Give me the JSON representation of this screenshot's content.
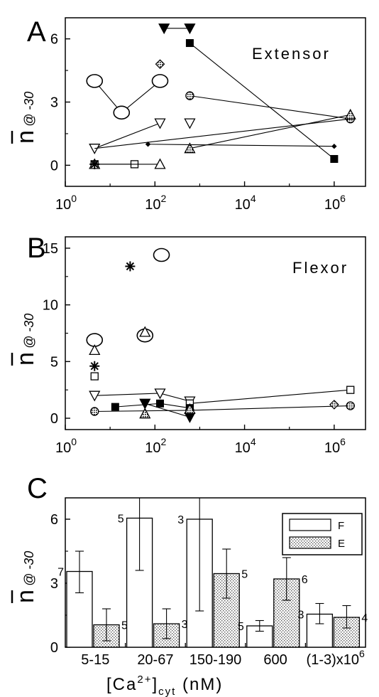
{
  "chart_data": [
    {
      "panel": "A",
      "type": "scatter",
      "annotation": "Extensor",
      "ylabel_main": "n",
      "ylabel_sub": "@ -30",
      "xscale": "log",
      "xlim": [
        1,
        5000000
      ],
      "ylim": [
        -1,
        7
      ],
      "xticks": [
        1,
        100,
        10000,
        1000000
      ],
      "xtick_labels": [
        {
          "base": "10",
          "exp": "0"
        },
        {
          "base": "10",
          "exp": "2"
        },
        {
          "base": "10",
          "exp": "4"
        },
        {
          "base": "10",
          "exp": "6"
        }
      ],
      "yticks": [
        0,
        3,
        6
      ],
      "ytick_labels": [
        "0",
        "3",
        "6"
      ],
      "series": [
        {
          "marker": "circle-large",
          "connected": true,
          "points": [
            [
              4.5,
              4.0
            ],
            [
              18,
              2.5
            ],
            [
              130,
              4.0
            ]
          ]
        },
        {
          "marker": "circle-hatched",
          "connected": true,
          "points": [
            [
              600,
              3.3
            ],
            [
              2300000,
              2.2
            ]
          ]
        },
        {
          "marker": "triangle-down",
          "connected": true,
          "points": [
            [
              4.5,
              0.8
            ],
            [
              130,
              2.0
            ]
          ]
        },
        {
          "marker": "triangle-down",
          "connected": false,
          "points": [
            [
              600,
              2.0
            ]
          ]
        },
        {
          "marker": "triangle-down-filled",
          "connected": true,
          "points": [
            [
              160,
              6.5
            ],
            [
              600,
              6.5
            ]
          ]
        },
        {
          "marker": "square-filled",
          "connected": true,
          "points": [
            [
              600,
              5.8
            ],
            [
              1000000,
              0.3
            ]
          ]
        },
        {
          "marker": "diamond-hatched",
          "connected": false,
          "points": [
            [
              130,
              4.8
            ]
          ]
        },
        {
          "marker": "diamond-small",
          "connected": true,
          "points": [
            [
              70,
              1.0
            ],
            [
              1000000,
              0.9
            ]
          ]
        },
        {
          "marker": "triangle-up-hatched",
          "connected": true,
          "points": [
            [
              600,
              0.8
            ],
            [
              2300000,
              2.4
            ]
          ]
        },
        {
          "marker": "square-open",
          "connected": true,
          "points": [
            [
              4.5,
              0.05
            ],
            [
              35,
              0.05
            ]
          ]
        },
        {
          "marker": "triangle-up",
          "connected": true,
          "points": [
            [
              4.5,
              0.05
            ],
            [
              130,
              0.05
            ]
          ]
        },
        {
          "marker": "star",
          "connected": false,
          "points": [
            [
              4.5,
              0.05
            ]
          ]
        },
        {
          "marker": "none",
          "connected": true,
          "points": [
            [
              4.5,
              0.8
            ],
            [
              2300000,
              2.2
            ]
          ]
        }
      ]
    },
    {
      "panel": "B",
      "type": "scatter",
      "annotation": "Flexor",
      "ylabel_main": "n",
      "ylabel_sub": "@ -30",
      "xscale": "log",
      "xlim": [
        1,
        5000000
      ],
      "ylim": [
        -1,
        16
      ],
      "xticks": [
        1,
        100,
        10000,
        1000000
      ],
      "xtick_labels": [
        {
          "base": "10",
          "exp": "0"
        },
        {
          "base": "10",
          "exp": "2"
        },
        {
          "base": "10",
          "exp": "4"
        },
        {
          "base": "10",
          "exp": "6"
        }
      ],
      "yticks": [
        0,
        5,
        10,
        15
      ],
      "ytick_labels": [
        "0",
        "5",
        "10",
        "15"
      ],
      "series": [
        {
          "marker": "circle-large",
          "connected": false,
          "points": [
            [
              4.5,
              6.9
            ],
            [
              60,
              7.3
            ],
            [
              140,
              14.4
            ]
          ]
        },
        {
          "marker": "star",
          "connected": false,
          "points": [
            [
              4.5,
              4.6
            ],
            [
              28,
              13.4
            ]
          ]
        },
        {
          "marker": "triangle-up",
          "connected": false,
          "points": [
            [
              4.5,
              6.0
            ],
            [
              60,
              7.6
            ]
          ]
        },
        {
          "marker": "square-open",
          "connected": false,
          "points": [
            [
              4.5,
              3.7
            ]
          ]
        },
        {
          "marker": "triangle-down",
          "connected": true,
          "points": [
            [
              4.5,
              2.0
            ],
            [
              130,
              2.2
            ],
            [
              600,
              1.5
            ]
          ]
        },
        {
          "marker": "square-open",
          "connected": true,
          "points": [
            [
              600,
              1.3
            ],
            [
              2300000,
              2.5
            ]
          ]
        },
        {
          "marker": "circle-hatched",
          "connected": true,
          "points": [
            [
              4.5,
              0.6
            ],
            [
              600,
              0.7
            ],
            [
              2300000,
              1.1
            ]
          ]
        },
        {
          "marker": "square-filled",
          "connected": true,
          "points": [
            [
              13,
              1.0
            ],
            [
              130,
              1.3
            ],
            [
              600,
              0.9
            ]
          ]
        },
        {
          "marker": "triangle-down-filled",
          "connected": true,
          "points": [
            [
              60,
              1.3
            ],
            [
              600,
              0.1
            ]
          ]
        },
        {
          "marker": "triangle-up-hatched",
          "connected": false,
          "points": [
            [
              60,
              0.4
            ],
            [
              600,
              0.8
            ]
          ]
        },
        {
          "marker": "diamond-hatched",
          "connected": false,
          "points": [
            [
              1000000,
              1.2
            ]
          ]
        }
      ]
    },
    {
      "panel": "C",
      "type": "bar",
      "ylabel_main": "n",
      "ylabel_sub": "@ -30",
      "xlabel": {
        "main": "[Ca",
        "sup": "2+",
        "close": "]",
        "sub": "cyt",
        "units": " (nM)"
      },
      "categories": [
        {
          "label": "5-15",
          "sup": ""
        },
        {
          "label": "20-67",
          "sup": ""
        },
        {
          "label": "150-190",
          "sup": ""
        },
        {
          "label": "600",
          "sup": ""
        },
        {
          "label": "(1-3)x10",
          "sup": "6"
        }
      ],
      "ylim": [
        0,
        7
      ],
      "yticks": [
        0,
        3,
        6
      ],
      "ytick_labels": [
        "0",
        "3",
        "6"
      ],
      "legend_position": "top-right",
      "series": [
        {
          "name": "F",
          "fill": "open",
          "values": [
            3.55,
            6.05,
            6.0,
            1.0,
            1.55
          ],
          "err_low": [
            2.55,
            3.6,
            1.7,
            0.75,
            1.1
          ],
          "err_high": [
            4.5,
            9.0,
            9.0,
            1.25,
            2.05
          ],
          "n": [
            "7",
            "5",
            "3",
            "5",
            "3"
          ]
        },
        {
          "name": "E",
          "fill": "stippled",
          "values": [
            1.05,
            1.1,
            3.45,
            3.2,
            1.4
          ],
          "err_low": [
            0.3,
            0.4,
            2.3,
            2.2,
            0.9
          ],
          "err_high": [
            1.8,
            1.8,
            4.6,
            4.2,
            1.95
          ],
          "n": [
            "5",
            "3",
            "5",
            "6",
            "4"
          ]
        }
      ]
    }
  ]
}
